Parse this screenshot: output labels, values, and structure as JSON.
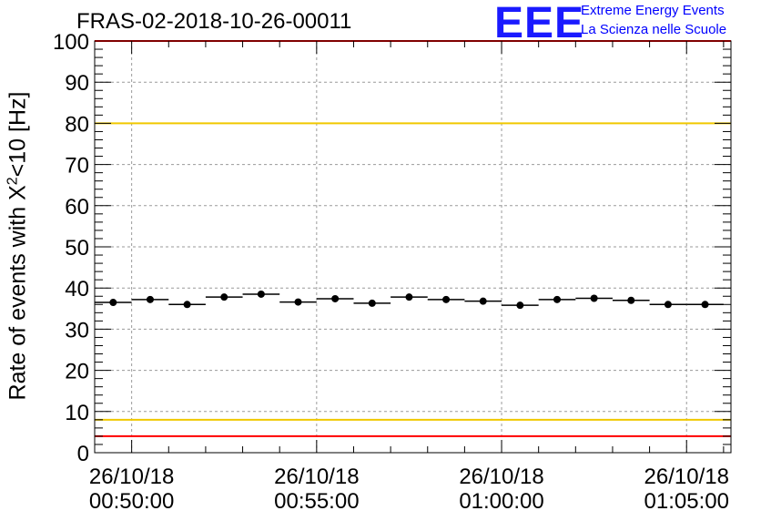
{
  "title": "FRAS-02-2018-10-26-00011",
  "logo": {
    "text": "EEE",
    "line1": "Extreme Energy Events",
    "line2": "La Scienza nelle Scuole",
    "color": "#1a1aff"
  },
  "colors": {
    "limit_red": "#ff0000",
    "limit_yellow": "#f0c800",
    "points": "#000000",
    "grid": "#9a9a9a"
  },
  "chart_data": {
    "type": "scatter",
    "title": "FRAS-02-2018-10-26-00011",
    "ylabel_prefix": "Rate of events with X",
    "ylabel_sup": "2",
    "ylabel_suffix": "<10 [Hz]",
    "xlabel": "",
    "ylim": [
      0,
      100
    ],
    "yticks": [
      0,
      10,
      20,
      30,
      40,
      50,
      60,
      70,
      80,
      90,
      100
    ],
    "x_unit": "minutes after 26/10/18 00:49:00",
    "xlim": [
      0,
      17.2
    ],
    "xticks": [
      {
        "x": 1,
        "date": "26/10/18",
        "time": "00:50:00"
      },
      {
        "x": 6,
        "date": "26/10/18",
        "time": "00:55:00"
      },
      {
        "x": 11,
        "date": "26/10/18",
        "time": "01:00:00"
      },
      {
        "x": 16,
        "date": "26/10/18",
        "time": "01:05:00"
      }
    ],
    "grid": true,
    "reference_lines": [
      {
        "y": 100,
        "color": "red"
      },
      {
        "y": 80,
        "color": "yellow"
      },
      {
        "y": 8,
        "color": "yellow"
      },
      {
        "y": 4,
        "color": "red"
      }
    ],
    "series": [
      {
        "name": "rate",
        "bin_width": 1,
        "x": [
          0.5,
          1.5,
          2.5,
          3.5,
          4.5,
          5.5,
          6.5,
          7.5,
          8.5,
          9.5,
          10.5,
          11.5,
          12.5,
          13.5,
          14.5,
          15.5,
          16.5
        ],
        "y": [
          36.5,
          37.2,
          36.0,
          37.8,
          38.5,
          36.6,
          37.4,
          36.3,
          37.8,
          37.2,
          36.8,
          35.8,
          37.2,
          37.5,
          37.0,
          36.0,
          36.0
        ]
      }
    ]
  }
}
